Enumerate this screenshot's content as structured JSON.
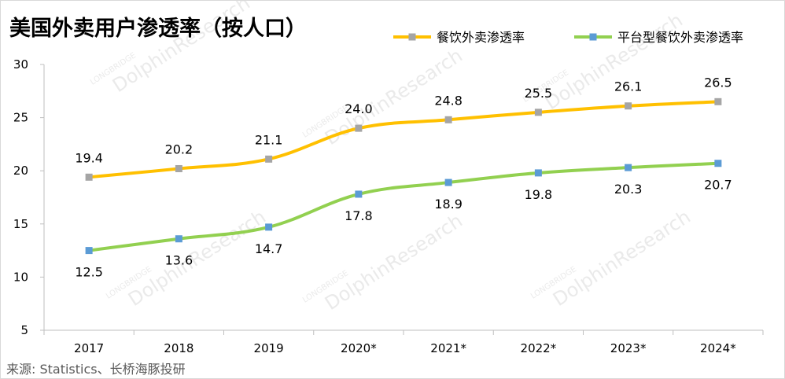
{
  "title": "美国外卖用户渗透率（按人口）",
  "source": "来源: Statistics、长桥海豚投研",
  "watermark": {
    "brand": "DolphinResearch",
    "sub": "LONGBRIDGE"
  },
  "chart_data": {
    "type": "line",
    "categories": [
      "2017",
      "2018",
      "2019",
      "2020*",
      "2021*",
      "2022*",
      "2023*",
      "2024*"
    ],
    "ylim": [
      5,
      30
    ],
    "yticks": [
      5,
      10,
      15,
      20,
      25,
      30
    ],
    "grid": false,
    "legend": "top-right",
    "series": [
      {
        "name": "餐饮外卖渗透率",
        "values": [
          19.4,
          20.2,
          21.1,
          24.0,
          24.8,
          25.5,
          26.1,
          26.5
        ],
        "labels": [
          "19.4",
          "20.2",
          "21.1",
          "24.0",
          "24.8",
          "25.5",
          "26.1",
          "26.5"
        ],
        "line_color": "#FFC000",
        "marker_color": "#A5A5A5",
        "label_position": "above"
      },
      {
        "name": "平台型餐饮外卖渗透率",
        "values": [
          12.5,
          13.6,
          14.7,
          17.8,
          18.9,
          19.8,
          20.3,
          20.7
        ],
        "labels": [
          "12.5",
          "13.6",
          "14.7",
          "17.8",
          "18.9",
          "19.8",
          "20.3",
          "20.7"
        ],
        "line_color": "#92D050",
        "marker_color": "#5B9BD5",
        "label_position": "below"
      }
    ]
  }
}
